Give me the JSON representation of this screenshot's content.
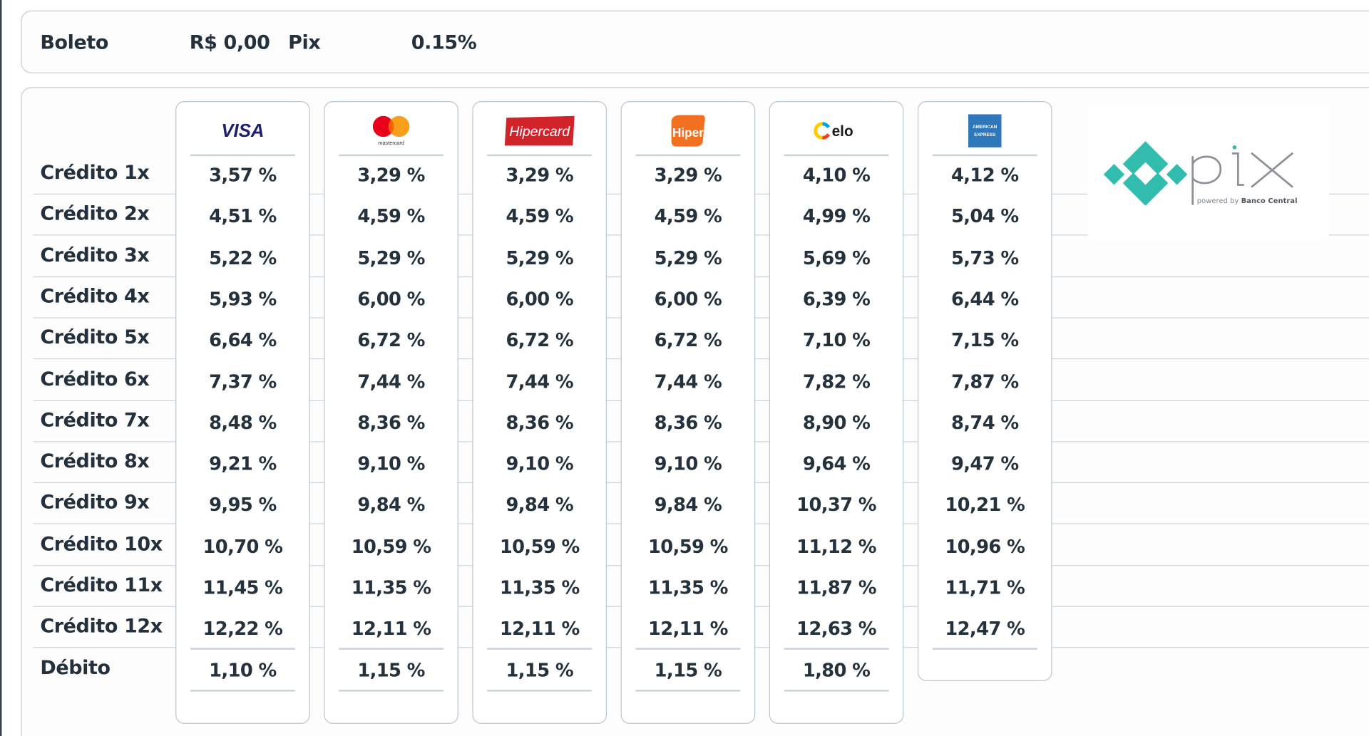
{
  "top": {
    "boleto_label": "Boleto",
    "boleto_value": "R$ 0,00",
    "pix_label": "Pix",
    "pix_value": "0.15%"
  },
  "row_labels": [
    "Crédito 1x",
    "Crédito 2x",
    "Crédito 3x",
    "Crédito 4x",
    "Crédito 5x",
    "Crédito 6x",
    "Crédito 7x",
    "Crédito 8x",
    "Crédito 9x",
    "Crédito 10x",
    "Crédito 11x",
    "Crédito 12x",
    "Débito"
  ],
  "brands": [
    {
      "name": "visa",
      "logo_text": "VISA",
      "logo_color": "#1a1f71",
      "rates": [
        "3,57 %",
        "4,51 %",
        "5,22 %",
        "5,93 %",
        "6,64 %",
        "7,37 %",
        "8,48 %",
        "9,21 %",
        "9,95 %",
        "10,70 %",
        "11,45 %",
        "12,22 %",
        "1,10 %"
      ]
    },
    {
      "name": "mastercard",
      "logo_text": "mastercard",
      "logo_color": "#eb001b",
      "rates": [
        "3,29 %",
        "4,59 %",
        "5,29 %",
        "6,00 %",
        "6,72 %",
        "7,44 %",
        "8,36 %",
        "9,10 %",
        "9,84 %",
        "10,59 %",
        "11,35 %",
        "12,11 %",
        "1,15 %"
      ]
    },
    {
      "name": "hipercard",
      "logo_text": "Hipercard",
      "logo_color": "#d1242a",
      "rates": [
        "3,29 %",
        "4,59 %",
        "5,29 %",
        "6,00 %",
        "6,72 %",
        "7,44 %",
        "8,36 %",
        "9,10 %",
        "9,84 %",
        "10,59 %",
        "11,35 %",
        "12,11 %",
        "1,15 %"
      ]
    },
    {
      "name": "hiper",
      "logo_text": "Hiper",
      "logo_color": "#f37021",
      "rates": [
        "3,29 %",
        "4,59 %",
        "5,29 %",
        "6,00 %",
        "6,72 %",
        "7,44 %",
        "8,36 %",
        "9,10 %",
        "9,84 %",
        "10,59 %",
        "11,35 %",
        "12,11 %",
        "1,15 %"
      ]
    },
    {
      "name": "elo",
      "logo_text": "elo",
      "logo_color": "#1b1b1b",
      "rates": [
        "4,10 %",
        "4,99 %",
        "5,69 %",
        "6,39 %",
        "7,10 %",
        "7,82 %",
        "8,90 %",
        "9,64 %",
        "10,37 %",
        "11,12 %",
        "11,87 %",
        "12,63 %",
        "1,80 %"
      ]
    },
    {
      "name": "american-express",
      "logo_text": "AMERICAN EXPRESS",
      "logo_color": "#2e77bb",
      "rates": [
        "4,12 %",
        "5,04 %",
        "5,73 %",
        "6,44 %",
        "7,15 %",
        "7,87 %",
        "8,74 %",
        "9,47 %",
        "10,21 %",
        "10,96 %",
        "11,71 %",
        "12,47 %"
      ]
    }
  ],
  "pix_logo": {
    "word": "pix",
    "caption_prefix": "powered by",
    "caption_bold": "Banco Central",
    "color": "#32bcad"
  }
}
